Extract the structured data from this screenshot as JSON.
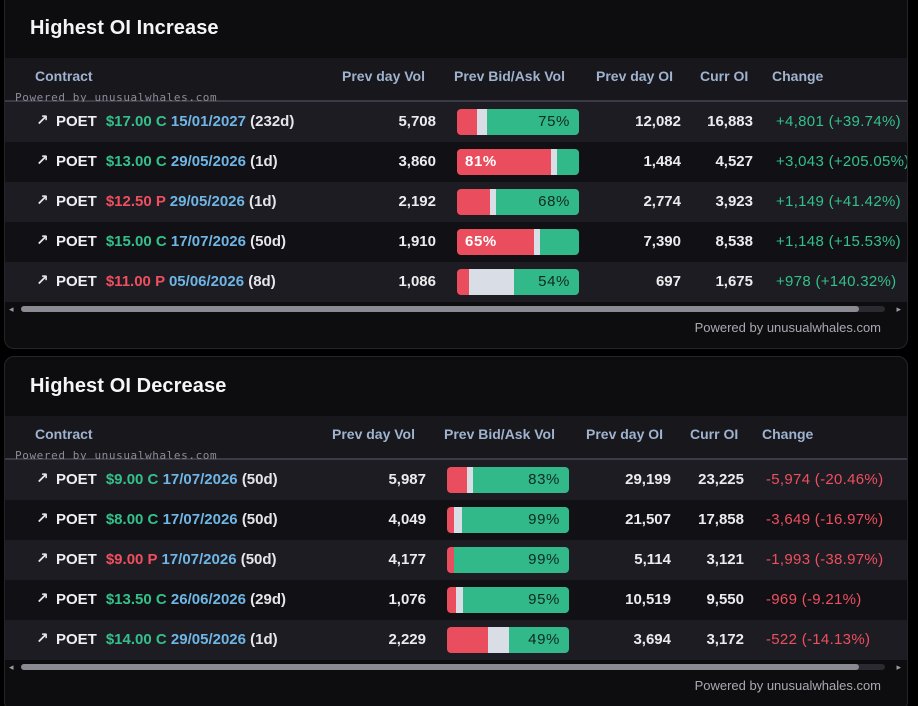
{
  "sections": [
    {
      "title": "Highest OI Increase",
      "watermark": "Powered by unusualwhales.com",
      "footer": "Powered by unusualwhales.com",
      "columns": {
        "contract": "Contract",
        "prev_vol": "Prev day Vol",
        "bid_ask": "Prev Bid/Ask Vol",
        "prev_oi": "Prev day OI",
        "curr_oi": "Curr OI",
        "change": "Change"
      },
      "rows": [
        {
          "icon": "↗",
          "ticker": "POET",
          "strike": "$17.00 C",
          "type": "call",
          "expiry": "15/01/2027",
          "dte": "(232d)",
          "prev_vol": "5,708",
          "bar": {
            "bid": 0.16,
            "mid": 0.09,
            "ask": 0.75
          },
          "bar_label": "75%",
          "bar_label_side": "right",
          "prev_oi": "12,082",
          "curr_oi": "16,883",
          "change": "+4,801 (+39.74%)",
          "change_dir": "pos"
        },
        {
          "icon": "↗",
          "ticker": "POET",
          "strike": "$13.00 C",
          "type": "call",
          "expiry": "29/05/2026",
          "dte": "(1d)",
          "prev_vol": "3,860",
          "bar": {
            "bid": 0.77,
            "mid": 0.05,
            "ask": 0.18
          },
          "bar_label": "81%",
          "bar_label_side": "left",
          "prev_oi": "1,484",
          "curr_oi": "4,527",
          "change": "+3,043 (+205.05%)",
          "change_dir": "pos"
        },
        {
          "icon": "↗",
          "ticker": "POET",
          "strike": "$12.50 P",
          "type": "put",
          "expiry": "29/05/2026",
          "dte": "(1d)",
          "prev_vol": "2,192",
          "bar": {
            "bid": 0.27,
            "mid": 0.05,
            "ask": 0.68
          },
          "bar_label": "68%",
          "bar_label_side": "right",
          "prev_oi": "2,774",
          "curr_oi": "3,923",
          "change": "+1,149 (+41.42%)",
          "change_dir": "pos"
        },
        {
          "icon": "↗",
          "ticker": "POET",
          "strike": "$15.00 C",
          "type": "call",
          "expiry": "17/07/2026",
          "dte": "(50d)",
          "prev_vol": "1,910",
          "bar": {
            "bid": 0.63,
            "mid": 0.05,
            "ask": 0.32
          },
          "bar_label": "65%",
          "bar_label_side": "left",
          "prev_oi": "7,390",
          "curr_oi": "8,538",
          "change": "+1,148 (+15.53%)",
          "change_dir": "pos"
        },
        {
          "icon": "↗",
          "ticker": "POET",
          "strike": "$11.00 P",
          "type": "put",
          "expiry": "05/06/2026",
          "dte": "(8d)",
          "prev_vol": "1,086",
          "bar": {
            "bid": 0.1,
            "mid": 0.37,
            "ask": 0.53
          },
          "bar_label": "54%",
          "bar_label_side": "right",
          "prev_oi": "697",
          "curr_oi": "1,675",
          "change": "+978 (+140.32%)",
          "change_dir": "pos"
        }
      ]
    },
    {
      "title": "Highest OI Decrease",
      "watermark": "Powered by unusualwhales.com",
      "footer": "Powered by unusualwhales.com",
      "columns": {
        "contract": "Contract",
        "prev_vol": "Prev day Vol",
        "bid_ask": "Prev Bid/Ask Vol",
        "prev_oi": "Prev day OI",
        "curr_oi": "Curr OI",
        "change": "Change"
      },
      "rows": [
        {
          "icon": "↗",
          "ticker": "POET",
          "strike": "$9.00 C",
          "type": "call",
          "expiry": "17/07/2026",
          "dte": "(50d)",
          "prev_vol": "5,987",
          "bar": {
            "bid": 0.16,
            "mid": 0.05,
            "ask": 0.79
          },
          "bar_label": "83%",
          "bar_label_side": "right",
          "prev_oi": "29,199",
          "curr_oi": "23,225",
          "change": "-5,974 (-20.46%)",
          "change_dir": "neg"
        },
        {
          "icon": "↗",
          "ticker": "POET",
          "strike": "$8.00 C",
          "type": "call",
          "expiry": "17/07/2026",
          "dte": "(50d)",
          "prev_vol": "4,049",
          "bar": {
            "bid": 0.06,
            "mid": 0.06,
            "ask": 0.88
          },
          "bar_label": "99%",
          "bar_label_side": "right",
          "prev_oi": "21,507",
          "curr_oi": "17,858",
          "change": "-3,649 (-16.97%)",
          "change_dir": "neg"
        },
        {
          "icon": "↗",
          "ticker": "POET",
          "strike": "$9.00 P",
          "type": "put",
          "expiry": "17/07/2026",
          "dte": "(50d)",
          "prev_vol": "4,177",
          "bar": {
            "bid": 0.06,
            "mid": 0.0,
            "ask": 0.94
          },
          "bar_label": "99%",
          "bar_label_side": "right",
          "prev_oi": "5,114",
          "curr_oi": "3,121",
          "change": "-1,993 (-38.97%)",
          "change_dir": "neg"
        },
        {
          "icon": "↗",
          "ticker": "POET",
          "strike": "$13.50 C",
          "type": "call",
          "expiry": "26/06/2026",
          "dte": "(29d)",
          "prev_vol": "1,076",
          "bar": {
            "bid": 0.07,
            "mid": 0.06,
            "ask": 0.87
          },
          "bar_label": "95%",
          "bar_label_side": "right",
          "prev_oi": "10,519",
          "curr_oi": "9,550",
          "change": "-969 (-9.21%)",
          "change_dir": "neg"
        },
        {
          "icon": "↗",
          "ticker": "POET",
          "strike": "$14.00 C",
          "type": "call",
          "expiry": "29/05/2026",
          "dte": "(1d)",
          "prev_vol": "2,229",
          "bar": {
            "bid": 0.34,
            "mid": 0.17,
            "ask": 0.49
          },
          "bar_label": "49%",
          "bar_label_side": "right",
          "prev_oi": "3,694",
          "curr_oi": "3,172",
          "change": "-522 (-14.13%)",
          "change_dir": "neg"
        }
      ]
    }
  ],
  "scroll_arrows": {
    "left": "◂",
    "right": "▸"
  },
  "colors": {
    "bid": "#ea4d5d",
    "mid": "#d9dde6",
    "ask": "#32b98a",
    "positive": "#34c08b",
    "negative": "#ef4f5f",
    "expiry": "#6fb6e6"
  }
}
